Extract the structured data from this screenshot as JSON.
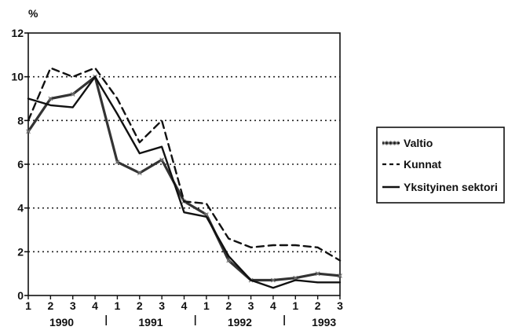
{
  "chart_data": {
    "type": "line",
    "ylabel": "%",
    "ylim": [
      0,
      12
    ],
    "yticks": [
      0,
      2,
      4,
      6,
      8,
      10,
      12
    ],
    "categories": [
      "1",
      "2",
      "3",
      "4",
      "1",
      "2",
      "3",
      "4",
      "1",
      "2",
      "3",
      "4",
      "1",
      "2",
      "3"
    ],
    "years": [
      "1990",
      "1991",
      "1992",
      "1993"
    ],
    "grid": "horizontal-dotted",
    "legend_position": "right",
    "series": [
      {
        "name": "Valtio",
        "style": "marked",
        "color": "#333333",
        "values": [
          7.5,
          9.0,
          9.2,
          10.0,
          6.1,
          5.6,
          6.2,
          4.3,
          3.7,
          1.6,
          0.7,
          0.7,
          0.8,
          1.0,
          0.9
        ]
      },
      {
        "name": "Kunnat",
        "style": "dashed",
        "color": "#111111",
        "values": [
          8.0,
          10.4,
          10.0,
          10.4,
          9.0,
          7.0,
          8.0,
          4.3,
          4.2,
          2.6,
          2.2,
          2.3,
          2.3,
          2.2,
          1.6
        ]
      },
      {
        "name": "Yksityinen sektori",
        "style": "solid",
        "color": "#111111",
        "values": [
          9.0,
          8.7,
          8.6,
          10.0,
          8.3,
          6.5,
          6.8,
          3.8,
          3.6,
          1.8,
          0.7,
          0.35,
          0.7,
          0.6,
          0.6
        ]
      }
    ]
  }
}
